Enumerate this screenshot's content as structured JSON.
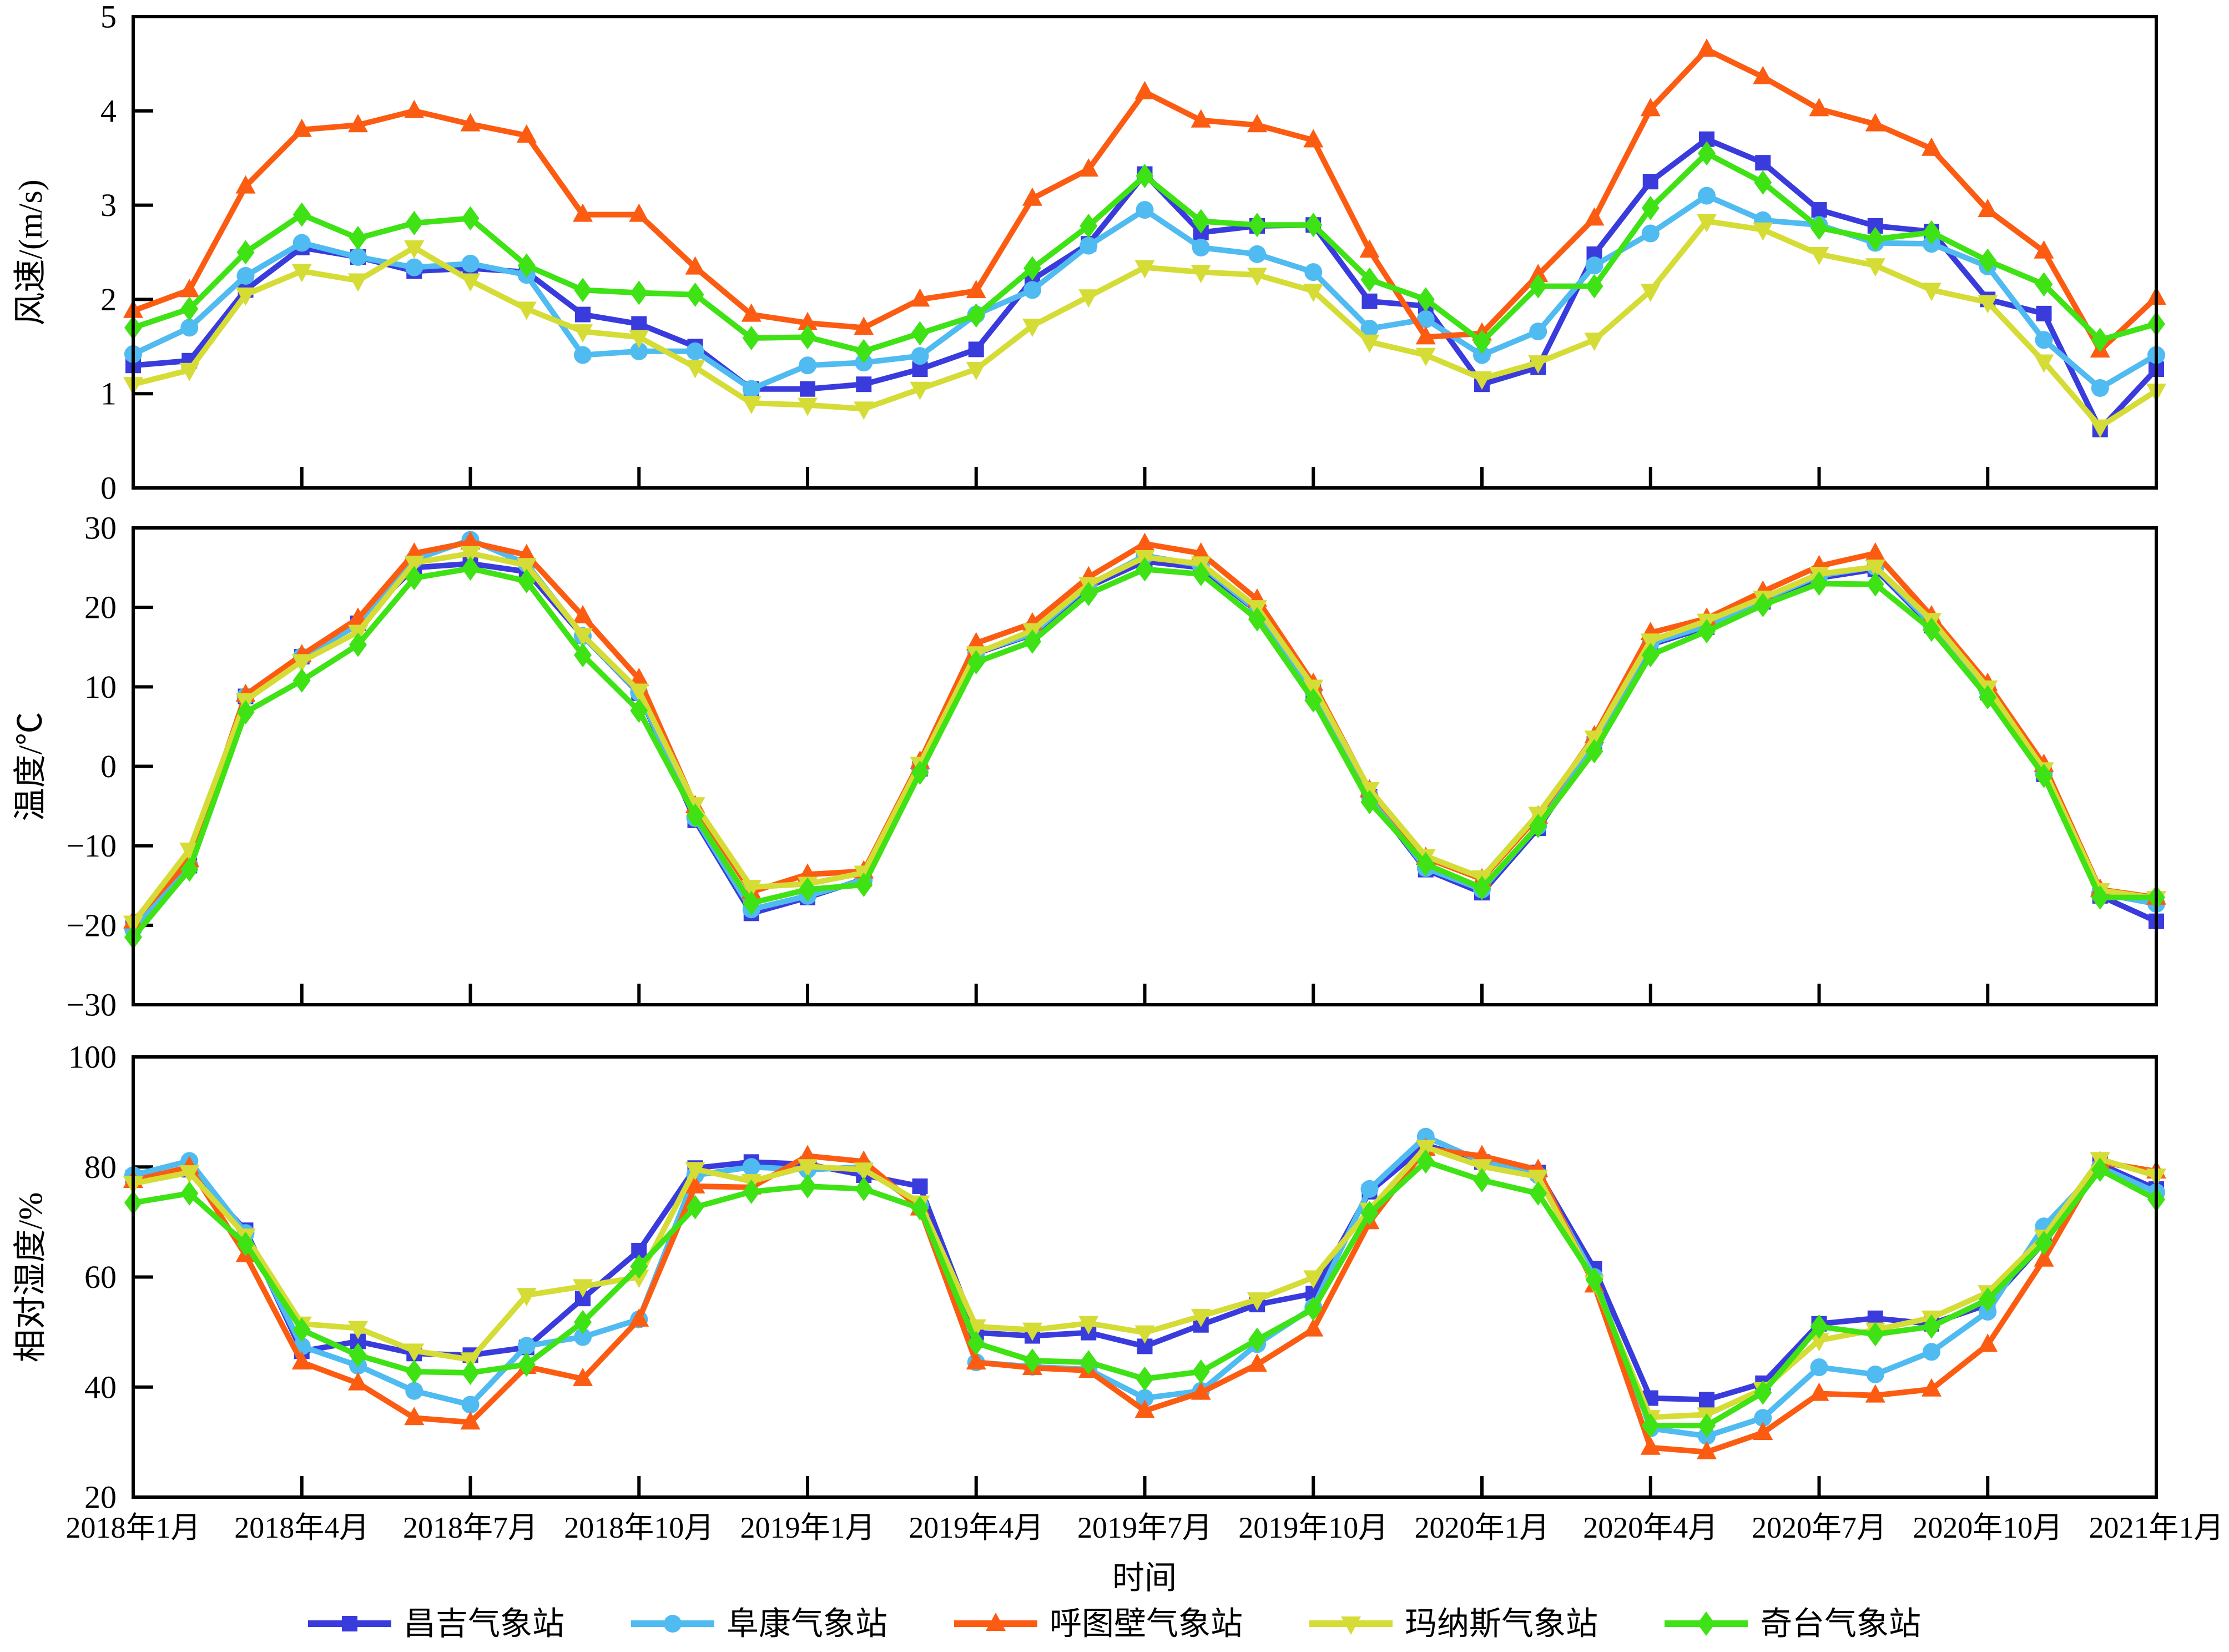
{
  "x_axis": {
    "label": "时间",
    "months_total": 37,
    "tick_every": 3,
    "tick_labels": [
      "2018年1月",
      "2018年4月",
      "2018年7月",
      "2018年10月",
      "2019年1月",
      "2019年4月",
      "2019年7月",
      "2019年10月",
      "2020年1月",
      "2020年4月",
      "2020年7月",
      "2020年10月",
      "2021年1月"
    ]
  },
  "legend": [
    {
      "name": "昌吉气象站",
      "color": "#3a3bdc",
      "marker": "square"
    },
    {
      "name": "阜康气象站",
      "color": "#4fbbf0",
      "marker": "circle"
    },
    {
      "name": "呼图壁气象站",
      "color": "#fc5c12",
      "marker": "triangle-up"
    },
    {
      "name": "玛纳斯气象站",
      "color": "#d4dc35",
      "marker": "triangle-down"
    },
    {
      "name": "奇台气象站",
      "color": "#3fe214",
      "marker": "diamond"
    }
  ],
  "chart_data": [
    {
      "type": "line",
      "ylabel": "风速/(m/s)",
      "ylim": [
        0,
        5
      ],
      "yticks": [
        0,
        1,
        2,
        3,
        4,
        5
      ],
      "x_start": "2018-01",
      "x_end": "2021-01",
      "series": [
        {
          "id": "changji",
          "name": "昌吉气象站",
          "color": "#3a3bdc",
          "marker": "square",
          "values": [
            1.3,
            1.35,
            2.1,
            2.55,
            2.45,
            2.3,
            2.33,
            2.29,
            1.84,
            1.74,
            1.5,
            1.05,
            1.05,
            1.1,
            1.26,
            1.47,
            2.21,
            2.59,
            3.33,
            2.71,
            2.78,
            2.79,
            1.98,
            1.93,
            1.1,
            1.28,
            2.48,
            3.25,
            3.7,
            3.45,
            2.95,
            2.78,
            2.72,
            2.0,
            1.85,
            0.62,
            1.26
          ]
        },
        {
          "id": "fukang",
          "name": "阜康气象站",
          "color": "#4fbbf0",
          "marker": "circle",
          "values": [
            1.42,
            1.7,
            2.25,
            2.6,
            2.45,
            2.34,
            2.38,
            2.26,
            1.41,
            1.45,
            1.45,
            1.05,
            1.3,
            1.33,
            1.4,
            1.84,
            2.1,
            2.57,
            2.95,
            2.55,
            2.48,
            2.29,
            1.69,
            1.79,
            1.41,
            1.66,
            2.36,
            2.7,
            3.1,
            2.84,
            2.79,
            2.6,
            2.59,
            2.35,
            1.57,
            1.06,
            1.41
          ]
        },
        {
          "id": "hutubi",
          "name": "呼图壁气象站",
          "color": "#fc5c12",
          "marker": "triangle-up",
          "values": [
            1.88,
            2.1,
            3.2,
            3.8,
            3.85,
            4.0,
            3.86,
            3.74,
            2.9,
            2.9,
            2.34,
            1.84,
            1.75,
            1.7,
            2.0,
            2.09,
            3.07,
            3.38,
            4.2,
            3.9,
            3.85,
            3.69,
            2.52,
            1.6,
            1.64,
            2.26,
            2.86,
            4.02,
            4.65,
            4.36,
            4.02,
            3.86,
            3.6,
            2.95,
            2.51,
            1.46,
            2.02
          ]
        },
        {
          "id": "manasi",
          "name": "玛纳斯气象站",
          "color": "#d4dc35",
          "marker": "triangle-down",
          "values": [
            1.1,
            1.25,
            2.05,
            2.3,
            2.2,
            2.55,
            2.2,
            1.9,
            1.66,
            1.6,
            1.28,
            0.9,
            0.88,
            0.84,
            1.05,
            1.26,
            1.72,
            2.03,
            2.34,
            2.29,
            2.26,
            2.09,
            1.55,
            1.41,
            1.16,
            1.33,
            1.57,
            2.09,
            2.83,
            2.74,
            2.48,
            2.36,
            2.1,
            1.97,
            1.34,
            0.65,
            1.03
          ]
        },
        {
          "id": "qitai",
          "name": "奇台气象站",
          "color": "#3fe214",
          "marker": "diamond",
          "values": [
            1.7,
            1.9,
            2.5,
            2.9,
            2.65,
            2.81,
            2.86,
            2.36,
            2.1,
            2.07,
            2.05,
            1.59,
            1.6,
            1.45,
            1.64,
            1.83,
            2.33,
            2.78,
            3.31,
            2.83,
            2.79,
            2.79,
            2.21,
            2.0,
            1.55,
            2.14,
            2.14,
            2.97,
            3.55,
            3.24,
            2.76,
            2.64,
            2.71,
            2.41,
            2.16,
            1.57,
            1.74
          ]
        }
      ]
    },
    {
      "type": "line",
      "ylabel": "温度/℃",
      "ylim": [
        -30,
        30
      ],
      "yticks": [
        -30,
        -20,
        -10,
        0,
        10,
        20,
        30
      ],
      "x_start": "2018-01",
      "x_end": "2021-01",
      "series": [
        {
          "id": "changji",
          "name": "昌吉气象站",
          "color": "#3a3bdc",
          "marker": "square",
          "values": [
            -20.0,
            -12.5,
            8.8,
            13.8,
            18.0,
            25.0,
            25.5,
            24.5,
            16.4,
            9.2,
            -6.8,
            -18.5,
            -16.5,
            -14.2,
            -0.3,
            14.2,
            16.6,
            22.6,
            25.8,
            25.0,
            19.5,
            9.4,
            -3.8,
            -13.0,
            -15.9,
            -7.8,
            2.8,
            15.3,
            17.5,
            20.7,
            23.7,
            24.8,
            17.7,
            9.3,
            -1.0,
            -16.3,
            -19.5
          ]
        },
        {
          "id": "fukang",
          "name": "阜康气象站",
          "color": "#4fbbf0",
          "marker": "circle",
          "values": [
            -20.5,
            -12.5,
            8.8,
            13.8,
            17.8,
            26.0,
            28.5,
            25.5,
            16.4,
            9.3,
            -6.5,
            -18.0,
            -16.3,
            -14.3,
            -0.2,
            14.3,
            16.7,
            22.8,
            26.5,
            25.3,
            19.6,
            9.5,
            -3.7,
            -12.8,
            -15.5,
            -7.5,
            3.0,
            15.5,
            17.7,
            21.0,
            24.0,
            25.1,
            17.9,
            9.5,
            -0.8,
            -16.0,
            -17.3
          ]
        },
        {
          "id": "hutubi",
          "name": "呼图壁气象站",
          "color": "#fc5c12",
          "marker": "triangle-up",
          "values": [
            -19.5,
            -11.8,
            9.0,
            14.0,
            18.6,
            26.8,
            28.2,
            26.6,
            18.9,
            11.0,
            -5.0,
            -15.8,
            -13.6,
            -13.2,
            0.6,
            15.5,
            18.0,
            23.8,
            28.0,
            26.8,
            21.0,
            10.4,
            -3.0,
            -11.5,
            -14.2,
            -6.3,
            3.8,
            16.8,
            18.6,
            22.0,
            25.2,
            26.8,
            18.9,
            10.4,
            0.2,
            -15.5,
            -16.5
          ]
        },
        {
          "id": "manasi",
          "name": "玛纳斯气象站",
          "color": "#d4dc35",
          "marker": "triangle-down",
          "values": [
            -19.7,
            -10.5,
            8.3,
            13.2,
            16.9,
            25.6,
            26.8,
            25.3,
            16.5,
            9.5,
            -4.8,
            -15.2,
            -14.8,
            -13.4,
            0.3,
            14.2,
            17.1,
            22.9,
            26.3,
            25.5,
            20.0,
            10.0,
            -2.9,
            -11.3,
            -14.0,
            -6.0,
            3.6,
            15.8,
            18.3,
            21.2,
            24.2,
            25.1,
            18.4,
            9.9,
            -0.4,
            -15.6,
            -16.6
          ]
        },
        {
          "id": "qitai",
          "name": "奇台气象站",
          "color": "#3fe214",
          "marker": "diamond",
          "values": [
            -21.5,
            -13.0,
            6.8,
            10.8,
            15.3,
            23.7,
            24.9,
            23.3,
            14.0,
            7.0,
            -6.2,
            -17.2,
            -15.5,
            -14.9,
            -0.8,
            13.1,
            15.7,
            21.7,
            24.8,
            24.2,
            18.5,
            8.3,
            -4.5,
            -12.3,
            -15.3,
            -7.5,
            1.9,
            14.0,
            17.0,
            20.3,
            23.0,
            22.9,
            17.2,
            8.7,
            -1.2,
            -16.5,
            -16.5
          ]
        }
      ]
    },
    {
      "type": "line",
      "ylabel": "相对湿度/%",
      "ylim": [
        20,
        100
      ],
      "yticks": [
        20,
        40,
        60,
        80,
        100
      ],
      "x_start": "2018-01",
      "x_end": "2021-01",
      "series": [
        {
          "id": "changji",
          "name": "昌吉气象站",
          "color": "#3a3bdc",
          "marker": "square",
          "values": [
            78.0,
            79.5,
            68.5,
            46.5,
            48.3,
            46.1,
            45.8,
            47.2,
            56.1,
            64.8,
            79.8,
            80.9,
            80.5,
            78.5,
            76.5,
            49.9,
            49.3,
            49.9,
            47.4,
            51.3,
            55.0,
            57.0,
            75.5,
            84.0,
            80.9,
            79.0,
            61.5,
            38.0,
            37.7,
            40.7,
            51.5,
            52.5,
            51.5,
            55.0,
            66.3,
            80.5,
            76.0
          ]
        },
        {
          "id": "fukang",
          "name": "阜康气象站",
          "color": "#4fbbf0",
          "marker": "circle",
          "values": [
            78.5,
            81.1,
            68.0,
            47.4,
            43.9,
            39.3,
            36.8,
            47.5,
            49.1,
            52.3,
            78.5,
            80.0,
            79.5,
            80.0,
            73.0,
            44.5,
            43.7,
            43.2,
            38.0,
            39.3,
            47.8,
            54.5,
            76.0,
            85.5,
            81.0,
            78.5,
            60.0,
            32.5,
            31.1,
            34.4,
            43.6,
            42.3,
            46.4,
            53.7,
            69.2,
            80.0,
            75.4
          ]
        },
        {
          "id": "hutubi",
          "name": "呼图壁气象站",
          "color": "#fc5c12",
          "marker": "triangle-up",
          "values": [
            77.5,
            80.0,
            64.0,
            44.5,
            40.7,
            34.4,
            33.6,
            43.7,
            41.5,
            52.3,
            76.5,
            76.3,
            82.0,
            81.0,
            72.5,
            44.5,
            43.5,
            43.0,
            35.7,
            39.0,
            44.1,
            50.5,
            70.0,
            83.3,
            82.0,
            79.5,
            58.5,
            29.0,
            28.2,
            31.7,
            38.8,
            38.5,
            39.6,
            47.7,
            63.2,
            80.9,
            79.2
          ]
        },
        {
          "id": "manasi",
          "name": "玛纳斯气象站",
          "color": "#d4dc35",
          "marker": "triangle-down",
          "values": [
            77.0,
            79.0,
            67.5,
            51.5,
            50.7,
            46.6,
            45.0,
            56.7,
            58.3,
            60.0,
            79.6,
            77.4,
            80.1,
            79.5,
            73.5,
            51.0,
            50.4,
            51.6,
            49.9,
            52.9,
            55.9,
            59.9,
            72.2,
            83.6,
            80.1,
            78.2,
            59.0,
            34.5,
            35.0,
            39.6,
            48.5,
            50.4,
            52.6,
            57.2,
            67.3,
            81.4,
            78.4
          ]
        },
        {
          "id": "qitai",
          "name": "奇台气象站",
          "color": "#3fe214",
          "marker": "diamond",
          "values": [
            73.5,
            75.2,
            66.0,
            50.4,
            45.8,
            42.8,
            42.6,
            44.1,
            51.8,
            61.9,
            72.7,
            75.5,
            76.5,
            76.0,
            72.5,
            48.0,
            44.8,
            44.5,
            41.5,
            42.8,
            48.6,
            54.2,
            71.6,
            81.0,
            77.6,
            75.2,
            59.5,
            33.0,
            33.0,
            39.0,
            51.0,
            49.6,
            51.0,
            55.9,
            66.2,
            79.5,
            74.1
          ]
        }
      ]
    }
  ]
}
